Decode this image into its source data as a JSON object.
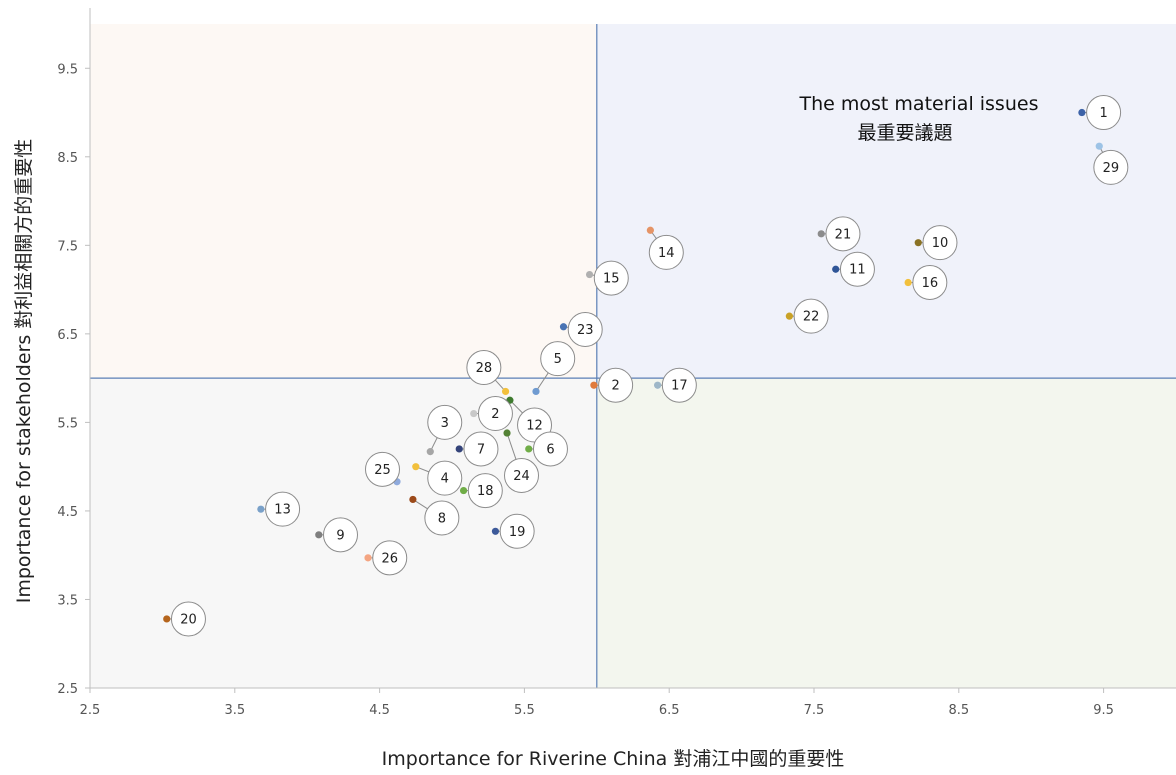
{
  "chart_data": {
    "type": "scatter",
    "xlabel": "Importance for Riverine China 對浦江中國的重要性",
    "ylabel": "Importance for stakeholders 對利益相關方的重要性",
    "xlim": [
      2.5,
      10.0
    ],
    "ylim": [
      2.5,
      10.0
    ],
    "x_ticks": [
      "2.5",
      "3.5",
      "4.5",
      "5.5",
      "6.5",
      "7.5",
      "8.5",
      "9.5"
    ],
    "y_ticks": [
      "2.5",
      "3.5",
      "4.5",
      "5.5",
      "6.5",
      "7.5",
      "8.5",
      "9.5"
    ],
    "x_divider": 6.0,
    "y_divider": 6.0,
    "quadrant_colors": {
      "top_left": "#fdf8f4",
      "top_right": "#f0f2fa",
      "bottom_left": "#f7f7f7",
      "bottom_right": "#f3f6ee"
    },
    "divider_color": "#5b7fb5",
    "annotation": {
      "line1": "The most material issues",
      "line2": "最重要議題"
    },
    "points": [
      {
        "label": "1",
        "x": 9.35,
        "y": 9.0,
        "color": "#3d63a8",
        "lx": 9.5,
        "ly": 9.0
      },
      {
        "label": "29",
        "x": 9.47,
        "y": 8.62,
        "color": "#9dc3e6",
        "lx": 9.55,
        "ly": 8.38
      },
      {
        "label": "14",
        "x": 6.37,
        "y": 7.67,
        "color": "#e59466",
        "lx": 6.48,
        "ly": 7.42
      },
      {
        "label": "21",
        "x": 7.55,
        "y": 7.63,
        "color": "#8c8c8c",
        "lx": 7.7,
        "ly": 7.63
      },
      {
        "label": "10",
        "x": 8.22,
        "y": 7.53,
        "color": "#8a7224",
        "lx": 8.37,
        "ly": 7.53
      },
      {
        "label": "11",
        "x": 7.65,
        "y": 7.23,
        "color": "#2f5597",
        "lx": 7.8,
        "ly": 7.23
      },
      {
        "label": "16",
        "x": 8.15,
        "y": 7.08,
        "color": "#f2c03c",
        "lx": 8.3,
        "ly": 7.08
      },
      {
        "label": "15",
        "x": 5.95,
        "y": 7.17,
        "color": "#b0b0b0",
        "lx": 6.1,
        "ly": 7.13
      },
      {
        "label": "22",
        "x": 7.33,
        "y": 6.7,
        "color": "#c9a227",
        "lx": 7.48,
        "ly": 6.7
      },
      {
        "label": "23",
        "x": 5.77,
        "y": 6.58,
        "color": "#4a74b4",
        "lx": 5.92,
        "ly": 6.55
      },
      {
        "label": "28",
        "x": 5.37,
        "y": 5.85,
        "color": "#f2c03c",
        "lx": 5.22,
        "ly": 6.12
      },
      {
        "label": "5",
        "x": 5.58,
        "y": 5.85,
        "color": "#6f9bd1",
        "lx": 5.73,
        "ly": 6.22
      },
      {
        "label": "2",
        "x": 5.98,
        "y": 5.92,
        "color": "#e07b3c",
        "lx": 6.13,
        "ly": 5.92
      },
      {
        "label": "17",
        "x": 6.42,
        "y": 5.92,
        "color": "#9eb7c8",
        "lx": 6.57,
        "ly": 5.92
      },
      {
        "label": "12",
        "x": 5.4,
        "y": 5.75,
        "color": "#3d7a2e",
        "lx": 5.57,
        "ly": 5.47
      },
      {
        "label": "2",
        "x": 5.15,
        "y": 5.6,
        "color": "#c8c8c8",
        "lx": 5.3,
        "ly": 5.6
      },
      {
        "label": "3",
        "x": 4.85,
        "y": 5.17,
        "color": "#a6a6a6",
        "lx": 4.95,
        "ly": 5.5
      },
      {
        "label": "7",
        "x": 5.05,
        "y": 5.2,
        "color": "#34447a",
        "lx": 5.2,
        "ly": 5.2
      },
      {
        "label": "6",
        "x": 5.53,
        "y": 5.2,
        "color": "#70ad47",
        "lx": 5.68,
        "ly": 5.2
      },
      {
        "label": "24",
        "x": 5.38,
        "y": 5.38,
        "color": "#548235",
        "lx": 5.48,
        "ly": 4.9
      },
      {
        "label": "4",
        "x": 4.75,
        "y": 5.0,
        "color": "#f2c03c",
        "lx": 4.95,
        "ly": 4.87
      },
      {
        "label": "25",
        "x": 4.62,
        "y": 4.83,
        "color": "#8faadc",
        "lx": 4.52,
        "ly": 4.97
      },
      {
        "label": "18",
        "x": 5.08,
        "y": 4.73,
        "color": "#70ad47",
        "lx": 5.23,
        "ly": 4.73
      },
      {
        "label": "8",
        "x": 4.73,
        "y": 4.63,
        "color": "#9c4a1a",
        "lx": 4.93,
        "ly": 4.42
      },
      {
        "label": "19",
        "x": 5.3,
        "y": 4.27,
        "color": "#3d5a9a",
        "lx": 5.45,
        "ly": 4.27
      },
      {
        "label": "13",
        "x": 3.68,
        "y": 4.52,
        "color": "#7aa1c9",
        "lx": 3.83,
        "ly": 4.52
      },
      {
        "label": "9",
        "x": 4.08,
        "y": 4.23,
        "color": "#7f7f7f",
        "lx": 4.23,
        "ly": 4.23
      },
      {
        "label": "26",
        "x": 4.42,
        "y": 3.97,
        "color": "#f4a582",
        "lx": 4.57,
        "ly": 3.97
      },
      {
        "label": "20",
        "x": 3.03,
        "y": 3.28,
        "color": "#b5651d",
        "lx": 3.18,
        "ly": 3.28
      }
    ]
  }
}
